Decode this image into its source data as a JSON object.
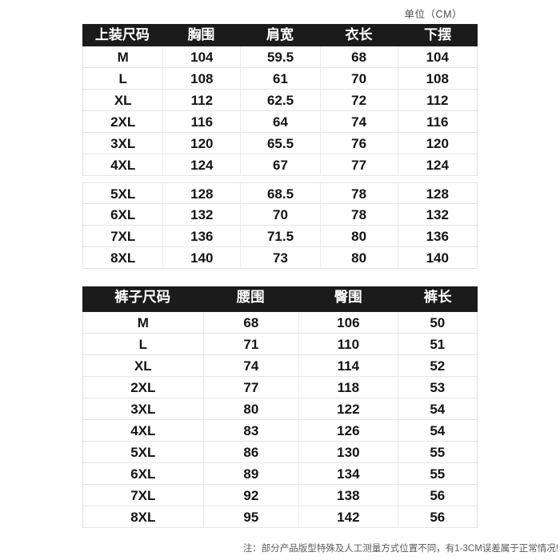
{
  "meta": {
    "unit_label": "单位（CM）",
    "footnote": "注：部分产品版型特殊及人工测量方式位置不同，有1-3CM误差属于正常情况!"
  },
  "colors": {
    "header_bg": "#1b1b1b",
    "header_text": "#ffffff",
    "body_text": "#141414",
    "border": "#e4e4e4",
    "note_text": "#5a5a5a"
  },
  "chart_data": [
    {
      "type": "table",
      "title": "上装尺码",
      "unit": "CM",
      "columns": [
        "上装尺码",
        "胸围",
        "肩宽",
        "衣长",
        "下摆"
      ],
      "rows": [
        [
          "M",
          "104",
          "59.5",
          "68",
          "104"
        ],
        [
          "L",
          "108",
          "61",
          "70",
          "108"
        ],
        [
          "XL",
          "112",
          "62.5",
          "72",
          "112"
        ],
        [
          "2XL",
          "116",
          "64",
          "74",
          "116"
        ],
        [
          "3XL",
          "120",
          "65.5",
          "76",
          "120"
        ],
        [
          "4XL",
          "124",
          "67",
          "77",
          "124"
        ],
        [
          "5XL",
          "128",
          "68.5",
          "78",
          "128"
        ],
        [
          "6XL",
          "132",
          "70",
          "78",
          "132"
        ],
        [
          "7XL",
          "136",
          "71.5",
          "80",
          "136"
        ],
        [
          "8XL",
          "140",
          "73",
          "80",
          "140"
        ]
      ],
      "group_gap_after_row": 5
    },
    {
      "type": "table",
      "title": "裤子尺码",
      "unit": "CM",
      "columns": [
        "裤子尺码",
        "腰围",
        "臀围",
        "裤长"
      ],
      "rows": [
        [
          "M",
          "68",
          "106",
          "50"
        ],
        [
          "L",
          "71",
          "110",
          "51"
        ],
        [
          "XL",
          "74",
          "114",
          "52"
        ],
        [
          "2XL",
          "77",
          "118",
          "53"
        ],
        [
          "3XL",
          "80",
          "122",
          "54"
        ],
        [
          "4XL",
          "83",
          "126",
          "54"
        ],
        [
          "5XL",
          "86",
          "130",
          "55"
        ],
        [
          "6XL",
          "89",
          "134",
          "55"
        ],
        [
          "7XL",
          "92",
          "138",
          "56"
        ],
        [
          "8XL",
          "95",
          "142",
          "56"
        ]
      ]
    }
  ]
}
